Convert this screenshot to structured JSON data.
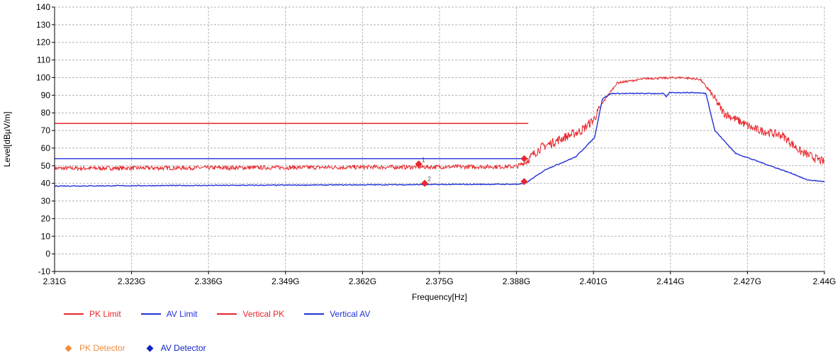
{
  "chart_data": {
    "type": "line",
    "xlabel": "Frequency[Hz]",
    "ylabel": "Level[dBµV/m]",
    "xlim": [
      2.31,
      2.44
    ],
    "ylim": [
      -10,
      140
    ],
    "x_ticks": [
      "2.31G",
      "2.323G",
      "2.336G",
      "2.349G",
      "2.362G",
      "2.375G",
      "2.388G",
      "2.401G",
      "2.414G",
      "2.427G",
      "2.44G"
    ],
    "y_ticks": [
      -10,
      0,
      10,
      20,
      30,
      40,
      50,
      60,
      70,
      80,
      90,
      100,
      110,
      120,
      130,
      140
    ],
    "grid": true,
    "legend_position": "bottom-left",
    "series": [
      {
        "name": "PK Limit",
        "color": "#e8262b",
        "style": "line",
        "x": [
          2.31,
          2.39
        ],
        "y": [
          74,
          74
        ]
      },
      {
        "name": "AV Limit",
        "color": "#2132d6",
        "style": "line",
        "x": [
          2.31,
          2.39
        ],
        "y": [
          54,
          54
        ]
      },
      {
        "name": "Vertical PK",
        "color": "#e8262b",
        "style": "noisy-line",
        "x": [
          2.31,
          2.35,
          2.388,
          2.3895,
          2.392,
          2.396,
          2.399,
          2.401,
          2.403,
          2.405,
          2.41,
          2.416,
          2.419,
          2.4205,
          2.423,
          2.428,
          2.433,
          2.436,
          2.44
        ],
        "y": [
          48.5,
          49,
          49.5,
          52,
          60,
          66,
          70,
          76,
          88,
          97,
          99.5,
          100,
          99,
          93,
          80,
          71,
          67,
          58,
          52
        ]
      },
      {
        "name": "Vertical AV",
        "color": "#2132d6",
        "style": "line",
        "x": [
          2.31,
          2.35,
          2.388,
          2.3895,
          2.393,
          2.398,
          2.4012,
          2.4025,
          2.404,
          2.41,
          2.4128,
          2.4133,
          2.4138,
          2.418,
          2.42,
          2.4215,
          2.425,
          2.43,
          2.435,
          2.437,
          2.44
        ],
        "y": [
          38.5,
          39,
          39.5,
          40,
          48,
          55,
          66,
          88,
          91,
          91,
          91,
          89,
          91.5,
          91.5,
          91,
          70,
          57,
          51,
          45,
          42,
          41
        ]
      },
      {
        "name": "PK Detector",
        "color": "#e8262b",
        "style": "marker",
        "x": [
          2.3715,
          2.3893
        ],
        "y": [
          51,
          54
        ]
      },
      {
        "name": "AV Detector",
        "color": "#e8262b",
        "style": "marker",
        "x": [
          2.3725,
          2.3893
        ],
        "y": [
          40,
          41
        ]
      }
    ],
    "marker_labels": [
      "1",
      "2"
    ],
    "legend": [
      {
        "label": "PK Limit",
        "color": "#e8262b",
        "kind": "line"
      },
      {
        "label": "AV Limit",
        "color": "#2132d6",
        "kind": "line"
      },
      {
        "label": "Vertical PK",
        "color": "#e8262b",
        "kind": "line"
      },
      {
        "label": "Vertical AV",
        "color": "#2132d6",
        "kind": "line"
      },
      {
        "label": "PK Detector",
        "color": "#f28c3c",
        "kind": "diamond"
      },
      {
        "label": "AV Detector",
        "color": "#1224c8",
        "kind": "diamond"
      }
    ]
  }
}
